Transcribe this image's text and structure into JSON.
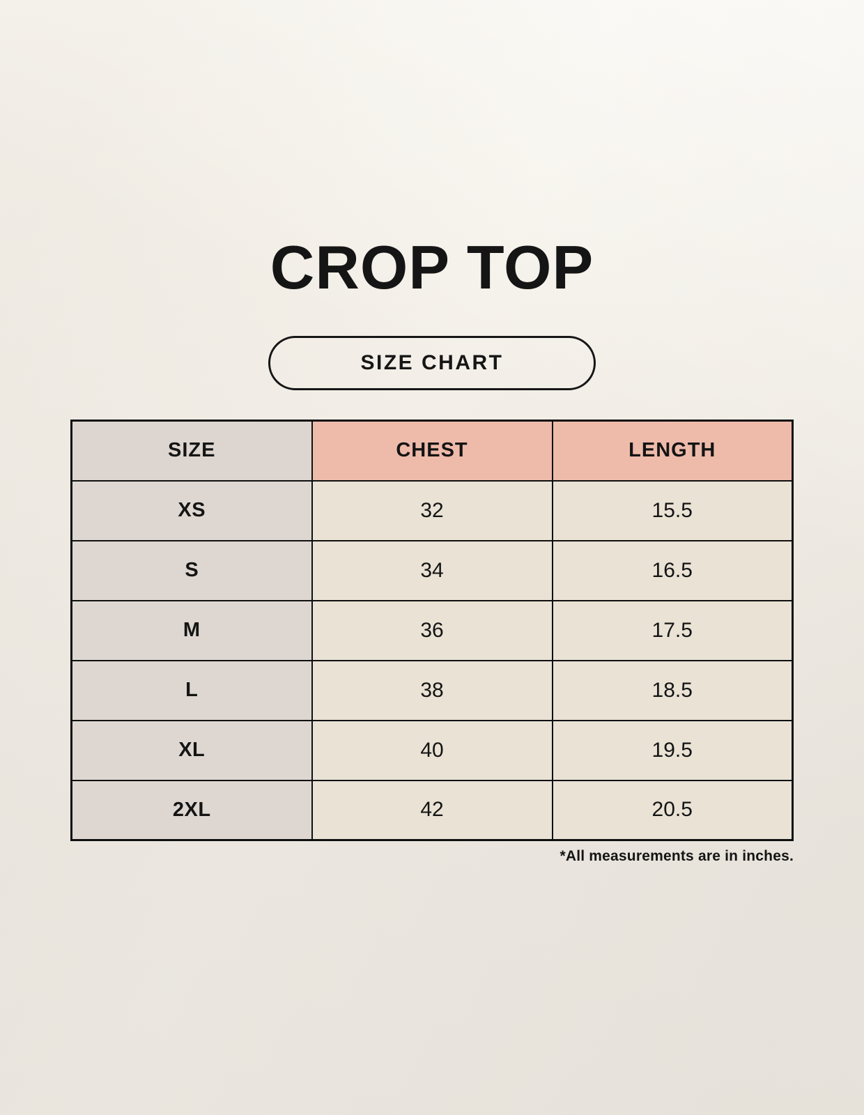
{
  "page": {
    "title": "CROP TOP",
    "badge_label": "SIZE CHART",
    "footnote": "*All measurements are in inches."
  },
  "chart_data": {
    "type": "table",
    "title": "CROP TOP",
    "columns": [
      "SIZE",
      "CHEST",
      "LENGTH"
    ],
    "rows": [
      {
        "size": "XS",
        "chest": "32",
        "length": "15.5"
      },
      {
        "size": "S",
        "chest": "34",
        "length": "16.5"
      },
      {
        "size": "M",
        "chest": "36",
        "length": "17.5"
      },
      {
        "size": "L",
        "chest": "38",
        "length": "18.5"
      },
      {
        "size": "XL",
        "chest": "40",
        "length": "19.5"
      },
      {
        "size": "2XL",
        "chest": "42",
        "length": "20.5"
      }
    ],
    "units_note": "*All measurements are in inches."
  },
  "colors": {
    "header-pink": "#eebbab",
    "header-gray": "#ddd5cf",
    "col1-gray": "#ded7d1",
    "cell-cream": "#e9e2d5",
    "border": "#101010",
    "background": "#f3efe8"
  }
}
